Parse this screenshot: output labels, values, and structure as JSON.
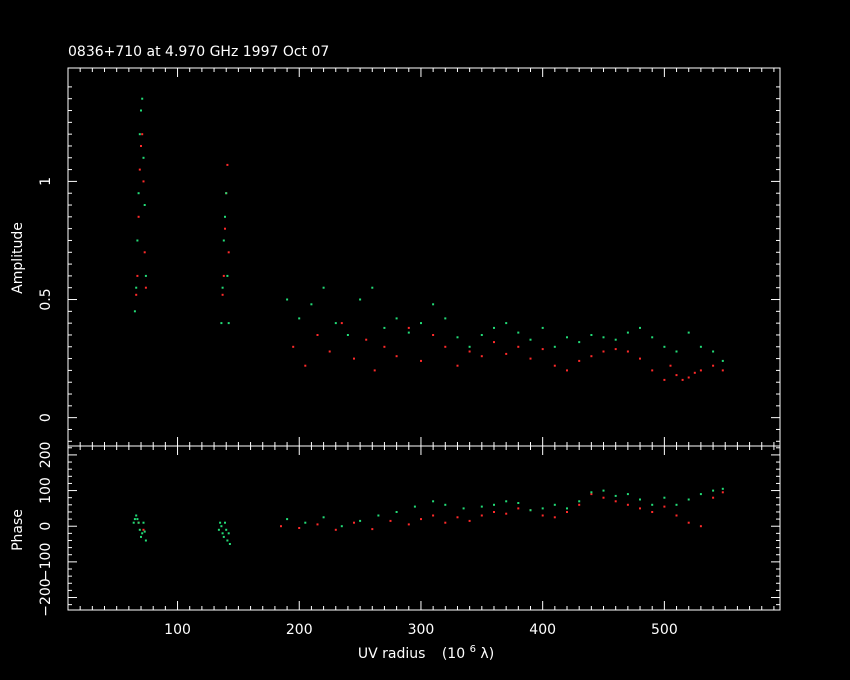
{
  "chart_data": {
    "type": "scatter",
    "title": "0836+710 at 4.970 GHz 1997 Oct 07",
    "xlabel": "UV radius",
    "xlabel_unit": "(10",
    "xlabel_exp": "6",
    "xlabel_lambda": " λ)",
    "xlim": [
      10,
      595
    ],
    "x_major_ticks": [
      100,
      200,
      300,
      400,
      500
    ],
    "x_tick_labels": [
      "100",
      "200",
      "300",
      "400",
      "500"
    ],
    "colors": {
      "series_a": "#ff2a2a",
      "series_b": "#22dd77"
    },
    "amplitude": {
      "ylabel": "Amplitude",
      "ylim": [
        -0.12,
        1.48
      ],
      "y_major_ticks": [
        0,
        0.5,
        1
      ],
      "y_tick_labels": [
        "0",
        "0.5",
        "1"
      ],
      "series": [
        {
          "points": [
            [
              66,
              0.52
            ],
            [
              67,
              0.6
            ],
            [
              68,
              0.85
            ],
            [
              69,
              1.05
            ],
            [
              70,
              1.15
            ],
            [
              71,
              1.2
            ],
            [
              72,
              1.0
            ],
            [
              73,
              0.7
            ],
            [
              74,
              0.55
            ],
            [
              137,
              0.52
            ],
            [
              138,
              0.6
            ],
            [
              139,
              0.8
            ],
            [
              140,
              0.95
            ],
            [
              141,
              1.07
            ],
            [
              142,
              0.7
            ],
            [
              195,
              0.3
            ],
            [
              205,
              0.22
            ],
            [
              215,
              0.35
            ],
            [
              225,
              0.28
            ],
            [
              235,
              0.4
            ],
            [
              245,
              0.25
            ],
            [
              255,
              0.33
            ],
            [
              262,
              0.2
            ],
            [
              270,
              0.3
            ],
            [
              280,
              0.26
            ],
            [
              290,
              0.38
            ],
            [
              300,
              0.24
            ],
            [
              310,
              0.35
            ],
            [
              320,
              0.3
            ],
            [
              330,
              0.22
            ],
            [
              340,
              0.28
            ],
            [
              350,
              0.26
            ],
            [
              360,
              0.32
            ],
            [
              370,
              0.27
            ],
            [
              380,
              0.3
            ],
            [
              390,
              0.25
            ],
            [
              400,
              0.29
            ],
            [
              410,
              0.22
            ],
            [
              420,
              0.2
            ],
            [
              430,
              0.24
            ],
            [
              440,
              0.26
            ],
            [
              450,
              0.28
            ],
            [
              460,
              0.29
            ],
            [
              470,
              0.28
            ],
            [
              480,
              0.25
            ],
            [
              490,
              0.2
            ],
            [
              500,
              0.16
            ],
            [
              505,
              0.22
            ],
            [
              510,
              0.18
            ],
            [
              515,
              0.16
            ],
            [
              520,
              0.17
            ],
            [
              525,
              0.19
            ],
            [
              530,
              0.2
            ],
            [
              540,
              0.22
            ],
            [
              548,
              0.2
            ]
          ]
        },
        {
          "points": [
            [
              65,
              0.45
            ],
            [
              66,
              0.55
            ],
            [
              67,
              0.75
            ],
            [
              68,
              0.95
            ],
            [
              69,
              1.2
            ],
            [
              70,
              1.3
            ],
            [
              71,
              1.35
            ],
            [
              72,
              1.1
            ],
            [
              73,
              0.9
            ],
            [
              74,
              0.6
            ],
            [
              136,
              0.4
            ],
            [
              137,
              0.55
            ],
            [
              138,
              0.75
            ],
            [
              139,
              0.85
            ],
            [
              140,
              0.95
            ],
            [
              141,
              0.6
            ],
            [
              142,
              0.4
            ],
            [
              190,
              0.5
            ],
            [
              200,
              0.42
            ],
            [
              210,
              0.48
            ],
            [
              220,
              0.55
            ],
            [
              230,
              0.4
            ],
            [
              240,
              0.35
            ],
            [
              250,
              0.5
            ],
            [
              260,
              0.55
            ],
            [
              270,
              0.38
            ],
            [
              280,
              0.42
            ],
            [
              290,
              0.36
            ],
            [
              300,
              0.4
            ],
            [
              310,
              0.48
            ],
            [
              320,
              0.42
            ],
            [
              330,
              0.34
            ],
            [
              340,
              0.3
            ],
            [
              350,
              0.35
            ],
            [
              360,
              0.38
            ],
            [
              370,
              0.4
            ],
            [
              380,
              0.36
            ],
            [
              390,
              0.33
            ],
            [
              400,
              0.38
            ],
            [
              410,
              0.3
            ],
            [
              420,
              0.34
            ],
            [
              430,
              0.32
            ],
            [
              440,
              0.35
            ],
            [
              450,
              0.34
            ],
            [
              460,
              0.33
            ],
            [
              470,
              0.36
            ],
            [
              480,
              0.38
            ],
            [
              490,
              0.34
            ],
            [
              500,
              0.3
            ],
            [
              510,
              0.28
            ],
            [
              520,
              0.36
            ],
            [
              530,
              0.3
            ],
            [
              540,
              0.28
            ],
            [
              548,
              0.24
            ]
          ]
        }
      ]
    },
    "phase": {
      "ylabel": "Phase",
      "ylim": [
        -235,
        225
      ],
      "y_major_ticks": [
        -200,
        -100,
        0,
        100,
        200
      ],
      "y_tick_labels": [
        "−200",
        "−100",
        "0",
        "100",
        "200"
      ],
      "series": [
        {
          "points": [
            [
              68,
              10
            ],
            [
              72,
              -10
            ],
            [
              185,
              0
            ],
            [
              200,
              -5
            ],
            [
              215,
              5
            ],
            [
              230,
              -10
            ],
            [
              245,
              10
            ],
            [
              260,
              -8
            ],
            [
              275,
              15
            ],
            [
              290,
              5
            ],
            [
              300,
              20
            ],
            [
              310,
              30
            ],
            [
              320,
              10
            ],
            [
              330,
              25
            ],
            [
              340,
              15
            ],
            [
              350,
              30
            ],
            [
              360,
              40
            ],
            [
              370,
              35
            ],
            [
              380,
              50
            ],
            [
              390,
              45
            ],
            [
              400,
              30
            ],
            [
              410,
              25
            ],
            [
              420,
              40
            ],
            [
              430,
              60
            ],
            [
              440,
              90
            ],
            [
              450,
              80
            ],
            [
              460,
              70
            ],
            [
              470,
              60
            ],
            [
              480,
              50
            ],
            [
              490,
              40
            ],
            [
              500,
              55
            ],
            [
              510,
              30
            ],
            [
              520,
              10
            ],
            [
              530,
              0
            ],
            [
              540,
              80
            ],
            [
              548,
              95
            ]
          ]
        },
        {
          "points": [
            [
              64,
              10
            ],
            [
              65,
              20
            ],
            [
              66,
              30
            ],
            [
              67,
              20
            ],
            [
              68,
              10
            ],
            [
              69,
              -10
            ],
            [
              70,
              -30
            ],
            [
              71,
              -20
            ],
            [
              72,
              10
            ],
            [
              73,
              -15
            ],
            [
              74,
              -40
            ],
            [
              134,
              -10
            ],
            [
              135,
              10
            ],
            [
              136,
              0
            ],
            [
              137,
              -20
            ],
            [
              138,
              -30
            ],
            [
              139,
              10
            ],
            [
              140,
              -10
            ],
            [
              141,
              -40
            ],
            [
              142,
              -20
            ],
            [
              143,
              -50
            ],
            [
              190,
              20
            ],
            [
              205,
              10
            ],
            [
              220,
              25
            ],
            [
              235,
              0
            ],
            [
              250,
              15
            ],
            [
              265,
              30
            ],
            [
              280,
              40
            ],
            [
              295,
              55
            ],
            [
              310,
              70
            ],
            [
              320,
              60
            ],
            [
              335,
              50
            ],
            [
              350,
              55
            ],
            [
              360,
              60
            ],
            [
              370,
              70
            ],
            [
              380,
              65
            ],
            [
              390,
              45
            ],
            [
              400,
              50
            ],
            [
              410,
              60
            ],
            [
              420,
              50
            ],
            [
              430,
              70
            ],
            [
              440,
              95
            ],
            [
              450,
              100
            ],
            [
              460,
              85
            ],
            [
              470,
              90
            ],
            [
              480,
              75
            ],
            [
              490,
              60
            ],
            [
              500,
              80
            ],
            [
              510,
              60
            ],
            [
              520,
              75
            ],
            [
              530,
              90
            ],
            [
              540,
              100
            ],
            [
              548,
              105
            ]
          ]
        }
      ]
    }
  }
}
